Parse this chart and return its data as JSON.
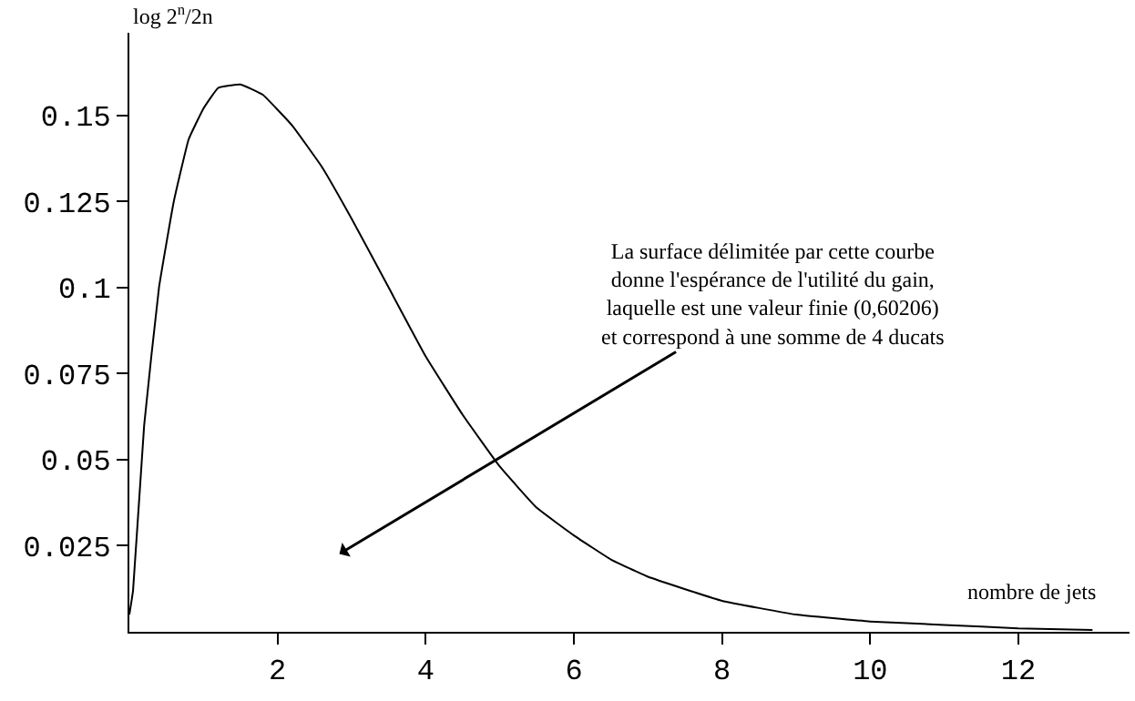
{
  "chart_data": {
    "type": "line",
    "ylabel": "log 2$^{n}$/2n",
    "xlabel": "nombre de jets",
    "x": [
      0,
      0.05,
      0.2,
      0.4,
      0.6,
      0.8,
      1.0,
      1.2,
      1.5,
      1.8,
      2.2,
      2.6,
      3,
      3.5,
      4,
      4.5,
      5,
      5.5,
      6,
      6.5,
      7,
      8,
      9,
      10,
      11,
      12,
      13
    ],
    "series": [
      {
        "color": "#000000",
        "values": [
          0.005,
          0.012,
          0.06,
          0.1,
          0.125,
          0.143,
          0.152,
          0.158,
          0.159,
          0.156,
          0.147,
          0.135,
          0.12,
          0.1,
          0.08,
          0.063,
          0.048,
          0.036,
          0.028,
          0.021,
          0.016,
          0.009,
          0.005,
          0.003,
          0.002,
          0.001,
          0.0005
        ]
      }
    ],
    "annotations": [
      "La surface délimitée par cette courbe\ndonne l'espérance de l'utilité du gain,\nlaquelle est une valeur finie (0,60206)\net correspond à une somme de 4 ducats"
    ],
    "xlim": [
      0,
      13.5
    ],
    "ylim": [
      0,
      0.174
    ],
    "xticks": [
      2,
      4,
      6,
      8,
      10,
      12
    ],
    "yticks": [
      0.025,
      0.05,
      0.075,
      0.1,
      0.125,
      0.15
    ],
    "marker": "none",
    "line_style": "solid"
  }
}
